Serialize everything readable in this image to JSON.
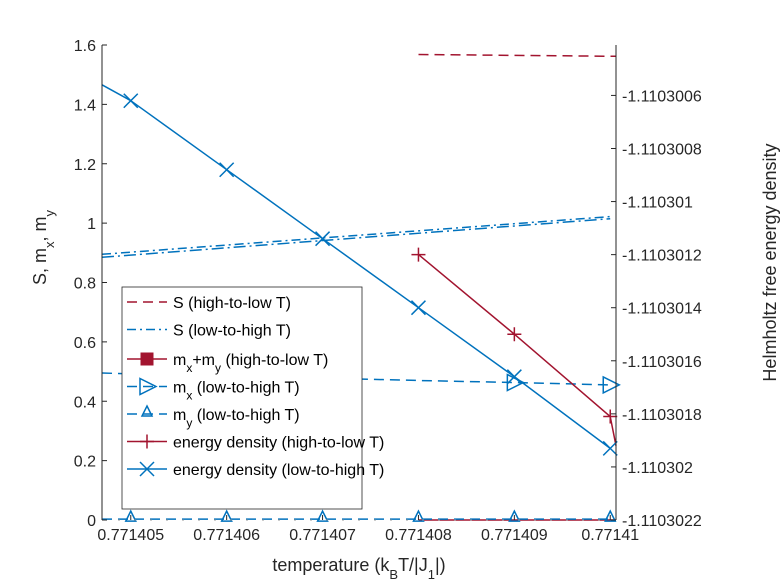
{
  "chart_data": {
    "type": "line",
    "title": "",
    "xlabel": "temperature (k_B T/|J_1|)",
    "xlabel_parts": [
      {
        "text": "temperature (k",
        "sub": false
      },
      {
        "text": "B",
        "sub": true
      },
      {
        "text": "T/|J",
        "sub": false
      },
      {
        "text": "1",
        "sub": true
      },
      {
        "text": "|)",
        "sub": false
      }
    ],
    "ylabel_left": "S, m_x, m_y",
    "ylabel_left_parts": [
      {
        "text": "S, m",
        "sub": false
      },
      {
        "text": "x",
        "sub": true
      },
      {
        "text": ", m",
        "sub": false
      },
      {
        "text": "y",
        "sub": true
      }
    ],
    "ylabel_right": "Helmholtz free energy density",
    "xlim": [
      0.7714047,
      0.77141006
    ],
    "ylim_left": [
      0,
      1.6
    ],
    "ylim_right": [
      -1.1103022,
      -1.11030041
    ],
    "x_ticks": [
      0.771405,
      0.771406,
      0.771407,
      0.771408,
      0.771409,
      0.77141
    ],
    "x_tick_labels": [
      "0.771405",
      "0.771406",
      "0.771407",
      "0.771408",
      "0.771409",
      "0.77141"
    ],
    "y_left_ticks": [
      0,
      0.2,
      0.4,
      0.6,
      0.8,
      1,
      1.2,
      1.4,
      1.6
    ],
    "y_left_tick_labels": [
      "0",
      "0.2",
      "0.4",
      "0.6",
      "0.8",
      "1",
      "1.2",
      "1.4",
      "1.6"
    ],
    "y_right_ticks": [
      -1.1103006,
      -1.1103008,
      -1.110301,
      -1.1103012,
      -1.1103014,
      -1.1103016,
      -1.1103018,
      -1.110302,
      -1.1103022
    ],
    "y_right_tick_labels": [
      "-1.1103006",
      "-1.1103008",
      "-1.110301",
      "-1.1103012",
      "-1.1103014",
      "-1.1103016",
      "-1.1103018",
      "-1.110302",
      "-1.1103022"
    ],
    "grid": false,
    "legend_position": "center-left",
    "colors": {
      "red": "#A2142F",
      "blue": "#0072BD",
      "axis": "#262626"
    },
    "series": [
      {
        "name": "S (high-to-low T)",
        "label_parts": [
          {
            "text": "S (high-to-low T)",
            "sub": false
          }
        ],
        "axis": "left",
        "color": "#A2142F",
        "line": "dashed",
        "marker": "none",
        "x": [
          0.771408,
          0.77141006
        ],
        "y": [
          1.568,
          1.562
        ]
      },
      {
        "name": "S (low-to-high T)",
        "label_parts": [
          {
            "text": "S (low-to-high T)",
            "sub": false
          }
        ],
        "axis": "left",
        "color": "#0072BD",
        "line": "dashdot",
        "marker": "none",
        "x": [
          0.7714047,
          0.77141
        ],
        "y": [
          0.895,
          1.022
        ],
        "x2": [
          0.7714047,
          0.77141
        ],
        "y2": [
          0.885,
          1.015
        ]
      },
      {
        "name": "m_x+m_y (high-to-low T)",
        "label_parts": [
          {
            "text": "m",
            "sub": false
          },
          {
            "text": "x",
            "sub": true
          },
          {
            "text": "+m",
            "sub": false
          },
          {
            "text": "y",
            "sub": true
          },
          {
            "text": " (high-to-low T)",
            "sub": false
          }
        ],
        "axis": "left",
        "color": "#A2142F",
        "line": "solid",
        "marker": "square",
        "x": [
          0.771408,
          0.77141006
        ],
        "y": [
          0,
          0
        ]
      },
      {
        "name": "m_x (low-to-high T)",
        "label_parts": [
          {
            "text": "m",
            "sub": false
          },
          {
            "text": "x",
            "sub": true
          },
          {
            "text": " (low-to-high T)",
            "sub": false
          }
        ],
        "axis": "left",
        "color": "#0072BD",
        "line": "dashed",
        "marker": "triangle-right",
        "x": [
          0.7714047,
          0.771405,
          0.771406,
          0.771407,
          0.771408,
          0.771409,
          0.77141
        ],
        "y": [
          0.495,
          0.492,
          0.485,
          0.478,
          0.47,
          0.463,
          0.455
        ],
        "marker_x": [
          0.771409,
          0.77141
        ],
        "marker_y": [
          0.463,
          0.455
        ]
      },
      {
        "name": "m_y (low-to-high T)",
        "label_parts": [
          {
            "text": "m",
            "sub": false
          },
          {
            "text": "y",
            "sub": true
          },
          {
            "text": " (low-to-high T)",
            "sub": false
          }
        ],
        "axis": "left",
        "color": "#0072BD",
        "line": "dashed",
        "marker": "triangle-up",
        "x": [
          0.7714047,
          0.771405,
          0.771406,
          0.771407,
          0.771408,
          0.771409,
          0.77141
        ],
        "y": [
          0.003,
          0.003,
          0.003,
          0.003,
          0.003,
          0.003,
          0.003
        ]
      },
      {
        "name": "energy density (high-to-low T)",
        "label_parts": [
          {
            "text": "energy density (high-to-low T)",
            "sub": false
          }
        ],
        "axis": "right",
        "color": "#A2142F",
        "line": "solid",
        "marker": "plus",
        "x": [
          0.771408,
          0.771409,
          0.77141,
          0.77141006
        ],
        "y": [
          -1.1103012,
          -1.1103015,
          -1.11030181,
          -1.11030192
        ]
      },
      {
        "name": "energy density (low-to-high T)",
        "label_parts": [
          {
            "text": "energy density (low-to-high T)",
            "sub": false
          }
        ],
        "axis": "right",
        "color": "#0072BD",
        "line": "solid",
        "marker": "x",
        "x": [
          0.7714047,
          0.771405,
          0.771406,
          0.771407,
          0.771408,
          0.771409,
          0.77141
        ],
        "y": [
          -1.11030056,
          -1.11030062,
          -1.11030088,
          -1.11030114,
          -1.1103014,
          -1.11030166,
          -1.11030193
        ],
        "marker_x": [
          0.771405,
          0.771406,
          0.771407,
          0.771408,
          0.771409,
          0.77141
        ]
      }
    ]
  }
}
